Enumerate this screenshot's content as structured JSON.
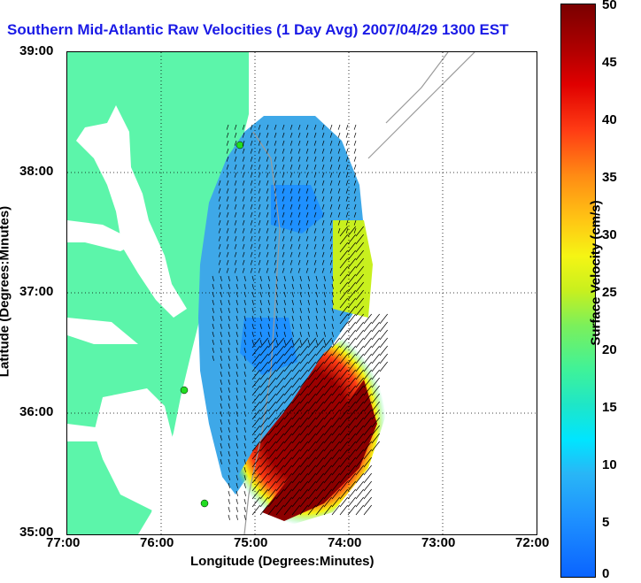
{
  "title": "Southern Mid-Atlantic Raw Velocities (1 Day Avg) 2007/04/29 1300 EST",
  "xlabel": "Longitude (Degrees:Minutes)",
  "ylabel": "Latitude (Degrees:Minutes)",
  "x_ticks": [
    "77:00",
    "76:00",
    "75:00",
    "74:00",
    "73:00",
    "72:00"
  ],
  "y_ticks": [
    "39:00",
    "38:00",
    "37:00",
    "36:00",
    "35:00"
  ],
  "colorbar": {
    "label": "Surface Velocity (cm/s)",
    "ticks": [
      "50",
      "45",
      "40",
      "35",
      "30",
      "25",
      "20",
      "15",
      "10",
      "5",
      "0"
    ]
  },
  "colors": {
    "land": "#5cf5aa",
    "title": "#1a1ae6",
    "station": "#22dd22"
  }
}
